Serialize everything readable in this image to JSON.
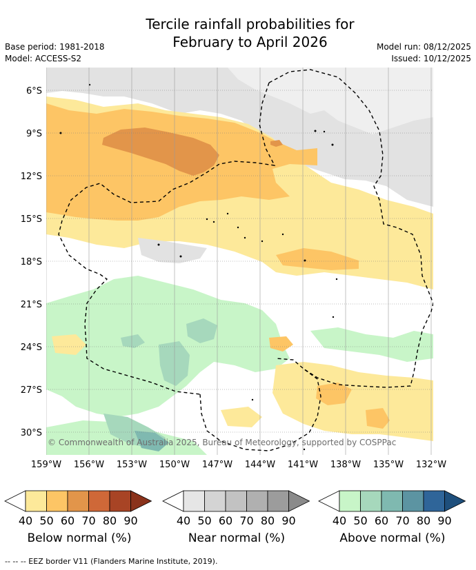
{
  "title_line1": "Tercile rainfall probabilities for",
  "title_line2": "February to April 2026",
  "base_period": "Base period: 1981-2018",
  "model": "Model: ACCESS-S2",
  "model_run": "Model run: 08/12/2025",
  "issued": "Issued: 10/12/2025",
  "map": {
    "lat_labels": [
      "6°S",
      "9°S",
      "12°S",
      "15°S",
      "18°S",
      "21°S",
      "24°S",
      "27°S",
      "30°S"
    ],
    "lon_labels": [
      "159°W",
      "156°W",
      "153°W",
      "150°W",
      "147°W",
      "144°W",
      "141°W",
      "138°W",
      "135°W",
      "132°W"
    ],
    "copyright": "© Commonwealth of Australia 2025, Bureau of Meteorology, supported by COSPPac"
  },
  "legends": [
    {
      "id": "below",
      "label": "Below normal (%)",
      "ticks": [
        "40",
        "50",
        "60",
        "70",
        "80",
        "90"
      ],
      "colors": [
        "#fde99a",
        "#fdc565",
        "#e2954a",
        "#cf6838",
        "#a84425",
        "#8a321b"
      ]
    },
    {
      "id": "near",
      "label": "Near normal (%)",
      "ticks": [
        "40",
        "50",
        "60",
        "70",
        "80",
        "90"
      ],
      "colors": [
        "#e6e6e6",
        "#d4d4d4",
        "#c2c2c2",
        "#b0b0b0",
        "#9c9c9c",
        "#8a8a8a"
      ]
    },
    {
      "id": "above",
      "label": "Above normal (%)",
      "ticks": [
        "40",
        "50",
        "60",
        "70",
        "80",
        "90"
      ],
      "colors": [
        "#c8f5c8",
        "#a6d8bc",
        "#7fb9b0",
        "#5c94a2",
        "#2f6599",
        "#1e4f7c"
      ]
    }
  ],
  "eez_note": "--  --  -- EEZ border V11 (Flanders Marine Institute, 2019)."
}
